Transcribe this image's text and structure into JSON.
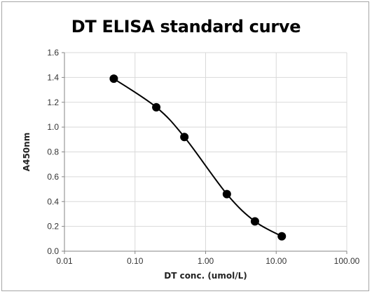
{
  "chart_data": {
    "type": "scatter",
    "title": "DT ELISA standard curve",
    "xlabel": "DT conc. (umol/L)",
    "ylabel": "A450nm",
    "x_scale": "log",
    "xlim": [
      0.01,
      100
    ],
    "ylim": [
      0,
      1.6
    ],
    "x_ticks": [
      0.01,
      0.1,
      1,
      10,
      100
    ],
    "x_tick_labels": [
      "0.01",
      "0.10",
      "1.00",
      "10.00",
      "100.00"
    ],
    "y_ticks": [
      0,
      0.2,
      0.4,
      0.6,
      0.8,
      1.0,
      1.2,
      1.4,
      1.6
    ],
    "y_tick_labels": [
      "0.0",
      "0.2",
      "0.4",
      "0.6",
      "0.8",
      "1.0",
      "1.2",
      "1.4",
      "1.6"
    ],
    "grid": true,
    "legend": "none",
    "series": [
      {
        "x": [
          0.05,
          0.2,
          0.5,
          2,
          5,
          12
        ],
        "y": [
          1.39,
          1.16,
          0.92,
          0.46,
          0.24,
          0.12
        ],
        "line": "smooth",
        "color": "#000000"
      }
    ]
  }
}
